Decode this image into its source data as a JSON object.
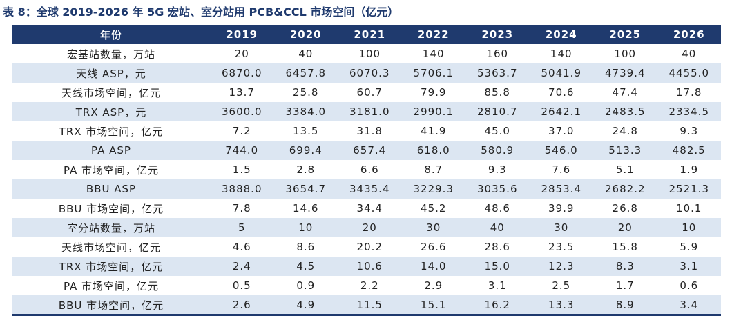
{
  "title": "表 8：全球 2019-2026 年 5G 宏站、室分站用 PCB&CCL 市场空间（亿元）",
  "table": {
    "header": [
      "年份",
      "2019",
      "2020",
      "2021",
      "2022",
      "2023",
      "2024",
      "2025",
      "2026"
    ],
    "rows": [
      [
        "宏基站数量，万站",
        "20",
        "40",
        "100",
        "140",
        "160",
        "140",
        "100",
        "40"
      ],
      [
        "天线 ASP，元",
        "6870.0",
        "6457.8",
        "6070.3",
        "5706.1",
        "5363.7",
        "5041.9",
        "4739.4",
        "4455.0"
      ],
      [
        "天线市场空间，亿元",
        "13.7",
        "25.8",
        "60.7",
        "79.9",
        "85.8",
        "70.6",
        "47.4",
        "17.8"
      ],
      [
        "TRX ASP，元",
        "3600.0",
        "3384.0",
        "3181.0",
        "2990.1",
        "2810.7",
        "2642.1",
        "2483.5",
        "2334.5"
      ],
      [
        "TRX 市场空间，亿元",
        "7.2",
        "13.5",
        "31.8",
        "41.9",
        "45.0",
        "37.0",
        "24.8",
        "9.3"
      ],
      [
        "PA ASP",
        "744.0",
        "699.4",
        "657.4",
        "618.0",
        "580.9",
        "546.0",
        "513.3",
        "482.5"
      ],
      [
        "PA 市场空间，亿元",
        "1.5",
        "2.8",
        "6.6",
        "8.7",
        "9.3",
        "7.6",
        "5.1",
        "1.9"
      ],
      [
        "BBU ASP",
        "3888.0",
        "3654.7",
        "3435.4",
        "3229.3",
        "3035.6",
        "2853.4",
        "2682.2",
        "2521.3"
      ],
      [
        "BBU 市场空间，亿元",
        "7.8",
        "14.6",
        "34.4",
        "45.2",
        "48.6",
        "39.9",
        "26.8",
        "10.1"
      ],
      [
        "室分站数量，万站",
        "5",
        "10",
        "20",
        "30",
        "40",
        "30",
        "20",
        "10"
      ],
      [
        "天线市场空间，亿元",
        "4.6",
        "8.6",
        "20.2",
        "26.6",
        "28.6",
        "23.5",
        "15.8",
        "5.9"
      ],
      [
        "TRX 市场空间，亿元",
        "2.4",
        "4.5",
        "10.6",
        "14.0",
        "15.0",
        "12.3",
        "8.3",
        "3.1"
      ],
      [
        "PA 市场空间，亿元",
        "0.5",
        "0.9",
        "2.2",
        "2.9",
        "3.1",
        "2.5",
        "1.7",
        "0.6"
      ],
      [
        "BBU 市场空间，亿元",
        "2.6",
        "4.9",
        "11.5",
        "15.1",
        "16.2",
        "13.3",
        "8.9",
        "3.4"
      ]
    ]
  }
}
